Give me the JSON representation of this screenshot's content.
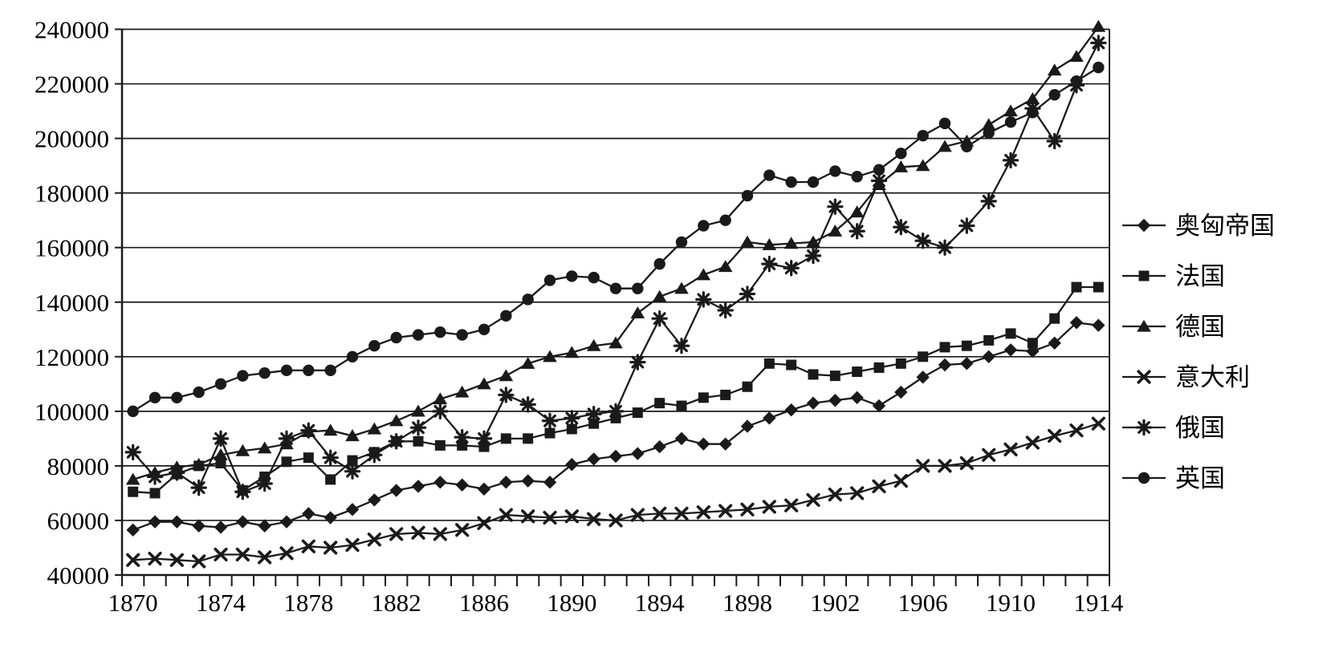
{
  "chart_data": {
    "type": "line",
    "title": "",
    "xlabel": "",
    "ylabel": "",
    "background_color": "#ffffff",
    "line_color": "#1a1a1a",
    "grid": "horizontal",
    "legend_position": "right",
    "ylim": [
      40000,
      240000
    ],
    "ytick_step": 20000,
    "ytick_labels": [
      "40000",
      "60000",
      "80000",
      "100000",
      "120000",
      "140000",
      "160000",
      "180000",
      "200000",
      "220000",
      "240000"
    ],
    "xtick_labels": [
      "1870",
      "1874",
      "1878",
      "1882",
      "1886",
      "1890",
      "1894",
      "1898",
      "1902",
      "1906",
      "1910",
      "1914"
    ],
    "x": [
      1870,
      1871,
      1872,
      1873,
      1874,
      1875,
      1876,
      1877,
      1878,
      1879,
      1880,
      1881,
      1882,
      1883,
      1884,
      1885,
      1886,
      1887,
      1888,
      1889,
      1890,
      1891,
      1892,
      1893,
      1894,
      1895,
      1896,
      1897,
      1898,
      1899,
      1900,
      1901,
      1902,
      1903,
      1904,
      1905,
      1906,
      1907,
      1908,
      1909,
      1910,
      1911,
      1912,
      1913,
      1914
    ],
    "series": [
      {
        "id": "austria-hungary",
        "name": "奥匈帝国",
        "marker": "diamond",
        "values": [
          56500,
          59500,
          59500,
          58000,
          57500,
          59500,
          58000,
          59500,
          62500,
          61000,
          64000,
          67500,
          71000,
          72500,
          74000,
          73000,
          71500,
          74000,
          74500,
          74000,
          80500,
          82500,
          83500,
          84500,
          87000,
          90000,
          88000,
          88000,
          94500,
          97500,
          100500,
          103000,
          104000,
          105000,
          102000,
          107000,
          112500,
          117000,
          117500,
          120000,
          122500,
          122000,
          125000,
          132500,
          131500
        ]
      },
      {
        "id": "france",
        "name": "法国",
        "marker": "square",
        "values": [
          70500,
          70000,
          77000,
          80000,
          81000,
          71000,
          76000,
          81500,
          83000,
          75000,
          82000,
          85000,
          89000,
          89000,
          87500,
          87500,
          87000,
          90000,
          90000,
          92000,
          93500,
          95500,
          97500,
          99500,
          103000,
          102000,
          105000,
          106000,
          109000,
          117500,
          117000,
          113500,
          113000,
          114500,
          116000,
          117500,
          120000,
          123500,
          124000,
          126000,
          128500,
          125000,
          134000,
          145500,
          145500
        ]
      },
      {
        "id": "germany",
        "name": "德国",
        "marker": "triangle",
        "values": [
          75000,
          77500,
          79500,
          80500,
          84000,
          85500,
          86500,
          88000,
          92500,
          93000,
          91000,
          93500,
          96500,
          100000,
          104500,
          107000,
          110000,
          113000,
          117500,
          120000,
          121500,
          124000,
          125000,
          136000,
          142000,
          145000,
          150000,
          153000,
          162000,
          161000,
          161500,
          162000,
          166000,
          173000,
          183000,
          189500,
          190000,
          197000,
          199000,
          205000,
          210000,
          214500,
          225000,
          230000,
          241000
        ]
      },
      {
        "id": "italy",
        "name": "意大利",
        "marker": "x",
        "values": [
          45500,
          46000,
          45500,
          45000,
          47500,
          47500,
          46500,
          48000,
          50500,
          50000,
          51000,
          53000,
          55000,
          55500,
          55000,
          56500,
          59000,
          62000,
          61500,
          61000,
          61500,
          60500,
          60000,
          62000,
          62500,
          62500,
          63000,
          63500,
          64000,
          65000,
          65500,
          67500,
          69500,
          70000,
          72500,
          74500,
          80000,
          80000,
          81000,
          84000,
          86000,
          88500,
          91000,
          93000,
          95500
        ]
      },
      {
        "id": "russia",
        "name": "俄国",
        "marker": "asterisk",
        "values": [
          85000,
          76000,
          77500,
          72000,
          90000,
          70500,
          73500,
          90000,
          93000,
          83000,
          78000,
          84000,
          89000,
          94000,
          100000,
          90500,
          90000,
          106000,
          102500,
          96500,
          97500,
          99000,
          100000,
          118000,
          134000,
          124000,
          141000,
          137000,
          143000,
          154000,
          152500,
          157000,
          175000,
          166000,
          184500,
          167500,
          162500,
          160000,
          168000,
          177000,
          192000,
          211000,
          199000,
          219500,
          235000
        ]
      },
      {
        "id": "uk",
        "name": "英国",
        "marker": "circle",
        "values": [
          100000,
          105000,
          105000,
          107000,
          110000,
          113000,
          114000,
          115000,
          115000,
          115000,
          120000,
          124000,
          127000,
          128000,
          129000,
          128000,
          130000,
          135000,
          141000,
          148000,
          149500,
          149000,
          145000,
          145000,
          154000,
          162000,
          168000,
          170000,
          179000,
          186500,
          184000,
          184000,
          188000,
          186000,
          188500,
          194500,
          201000,
          205500,
          197000,
          202000,
          206000,
          209500,
          216000,
          221000,
          226000
        ]
      }
    ]
  }
}
